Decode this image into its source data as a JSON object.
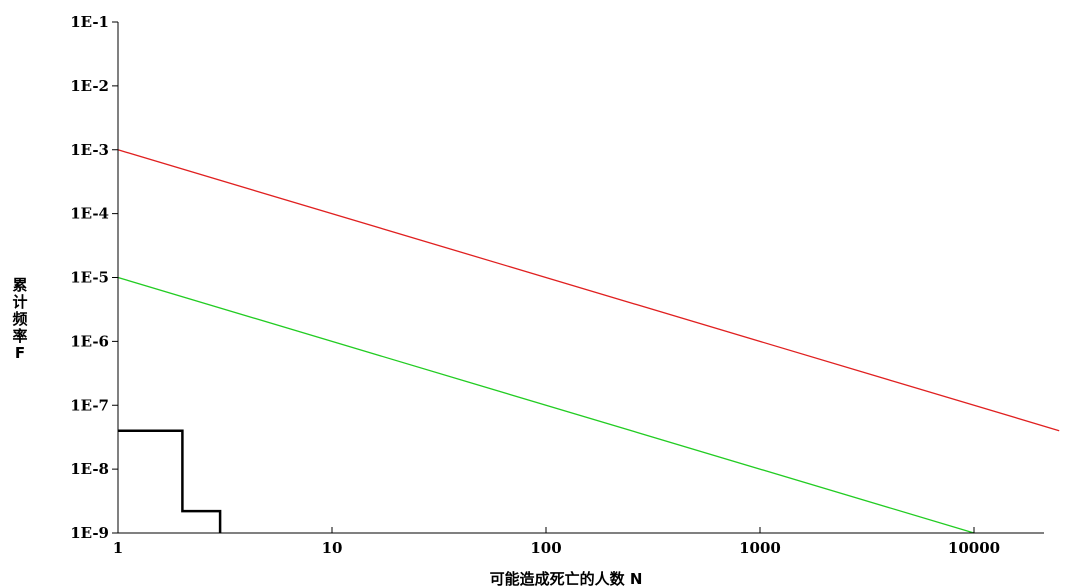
{
  "chart_data": {
    "type": "line",
    "title": "",
    "xlabel": "可能造成死亡的人数 N",
    "ylabel_lines": [
      "累",
      "计",
      "频",
      "率",
      "F"
    ],
    "x_scale": "log",
    "y_scale": "log",
    "xlim": [
      1,
      25000
    ],
    "ylim": [
      1e-09,
      0.1
    ],
    "grid": false,
    "x_ticks": [
      {
        "value": 1,
        "label": "1"
      },
      {
        "value": 10,
        "label": "10"
      },
      {
        "value": 100,
        "label": "100"
      },
      {
        "value": 1000,
        "label": "1000"
      },
      {
        "value": 10000,
        "label": "10000"
      }
    ],
    "y_ticks": [
      {
        "value": 0.1,
        "label": "1E-1"
      },
      {
        "value": 0.01,
        "label": "1E-2"
      },
      {
        "value": 0.001,
        "label": "1E-3"
      },
      {
        "value": 0.0001,
        "label": "1E-4"
      },
      {
        "value": 1e-05,
        "label": "1E-5"
      },
      {
        "value": 1e-06,
        "label": "1E-6"
      },
      {
        "value": 1e-07,
        "label": "1E-7"
      },
      {
        "value": 1e-08,
        "label": "1E-8"
      },
      {
        "value": 1e-09,
        "label": "1E-9"
      }
    ],
    "series": [
      {
        "color": "#e02020",
        "style": "line",
        "points": [
          [
            1,
            0.001
          ],
          [
            25000,
            4e-08
          ]
        ]
      },
      {
        "color": "#22cc22",
        "style": "line",
        "points": [
          [
            1,
            1e-05
          ],
          [
            10000,
            1e-09
          ]
        ]
      },
      {
        "color": "#000000",
        "style": "step",
        "points": [
          [
            1,
            4e-08
          ],
          [
            2,
            4e-08
          ],
          [
            2,
            2.2e-09
          ],
          [
            3,
            2.2e-09
          ],
          [
            3,
            1e-09
          ]
        ]
      }
    ]
  }
}
